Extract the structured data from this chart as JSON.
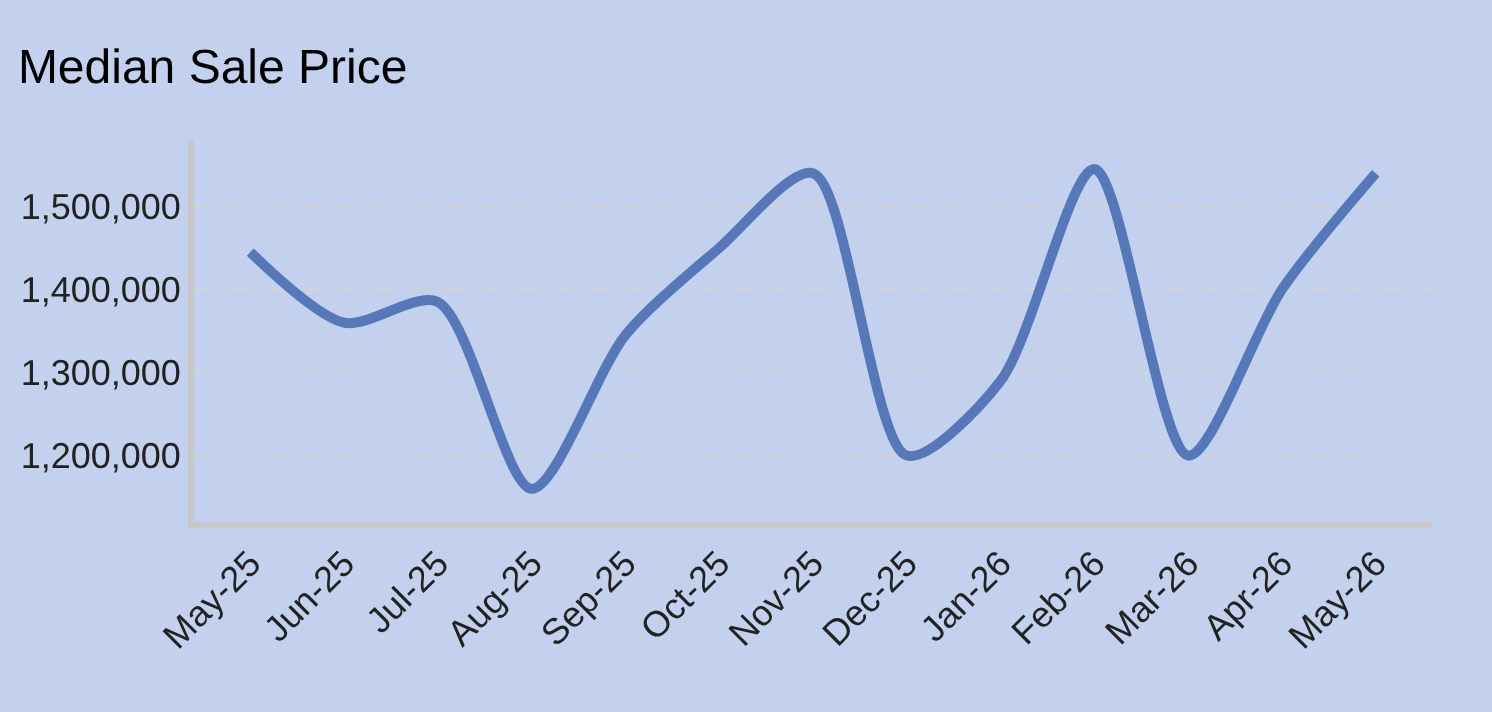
{
  "chart_data": {
    "type": "line",
    "title": "Median Sale Price",
    "categories": [
      "May-25",
      "Jun-25",
      "Jul-25",
      "Aug-25",
      "Sep-25",
      "Oct-25",
      "Nov-25",
      "Dec-25",
      "Jan-26",
      "Feb-26",
      "Mar-26",
      "Apr-26",
      "May-26"
    ],
    "series": [
      {
        "color": "#5677b8",
        "values": [
          1445000,
          1360000,
          1385000,
          1160000,
          1345000,
          1450000,
          1540000,
          1200000,
          1290000,
          1545000,
          1200000,
          1400000,
          1540000
        ]
      }
    ],
    "ylim": [
      1120000,
      1580000
    ],
    "yticks": [
      {
        "value": 1200000,
        "label": "1,200,000"
      },
      {
        "value": 1300000,
        "label": "1,300,000"
      },
      {
        "value": 1400000,
        "label": "1,400,000"
      },
      {
        "value": 1500000,
        "label": "1,500,000"
      }
    ],
    "grid": "y",
    "marker": "none",
    "line_style": "solid"
  }
}
